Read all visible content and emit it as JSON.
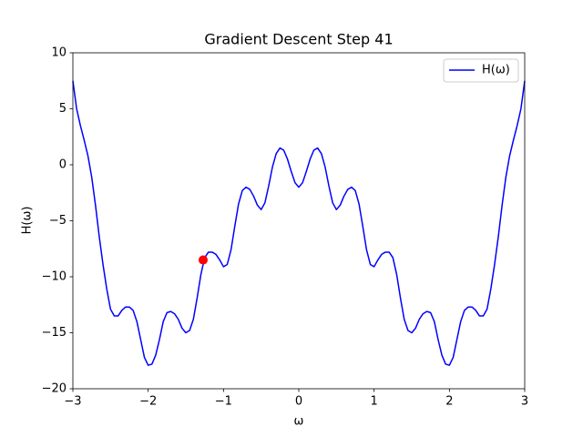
{
  "chart_data": {
    "type": "line",
    "title": "Gradient Descent Step 41",
    "x_label": "ω",
    "y_label": "H(ω)",
    "x": [
      -3,
      -2.95,
      -2.9,
      -2.85,
      -2.8,
      -2.75,
      -2.7,
      -2.65,
      -2.6,
      -2.55,
      -2.5,
      -2.45,
      -2.4,
      -2.35,
      -2.3,
      -2.25,
      -2.2,
      -2.15,
      -2.1,
      -2.05,
      -2,
      -1.95,
      -1.9,
      -1.85,
      -1.8,
      -1.75,
      -1.7,
      -1.65,
      -1.6,
      -1.55,
      -1.5,
      -1.45,
      -1.4,
      -1.35,
      -1.3,
      -1.25,
      -1.2,
      -1.15,
      -1.1,
      -1.05,
      -1,
      -0.95,
      -0.9,
      -0.85,
      -0.8,
      -0.75,
      -0.7,
      -0.65,
      -0.6,
      -0.55,
      -0.5,
      -0.45,
      -0.4,
      -0.35,
      -0.3,
      -0.25,
      -0.2,
      -0.15,
      -0.1,
      -0.05,
      0,
      0.05,
      0.1,
      0.15,
      0.2,
      0.25,
      0.3,
      0.35,
      0.4,
      0.45,
      0.5,
      0.55,
      0.6,
      0.65,
      0.7,
      0.75,
      0.8,
      0.85,
      0.9,
      0.95,
      1,
      1.05,
      1.1,
      1.15,
      1.2,
      1.25,
      1.3,
      1.35,
      1.4,
      1.45,
      1.5,
      1.55,
      1.6,
      1.65,
      1.7,
      1.75,
      1.8,
      1.85,
      1.9,
      1.95,
      2,
      2.05,
      2.1,
      2.15,
      2.2,
      2.25,
      2.3,
      2.35,
      2.4,
      2.45,
      2.5,
      2.55,
      2.6,
      2.65,
      2.7,
      2.75,
      2.8,
      2.85,
      2.9,
      2.95,
      3
    ],
    "series": [
      {
        "name": "H(ω)",
        "color": "#0000ff",
        "values": [
          7.5,
          5.0,
          3.5,
          2.2,
          0.8,
          -1.1,
          -3.6,
          -6.4,
          -8.9,
          -11.1,
          -12.9,
          -13.5,
          -13.5,
          -13.0,
          -12.7,
          -12.7,
          -13.0,
          -14.0,
          -15.6,
          -17.2,
          -17.9,
          -17.8,
          -17.0,
          -15.6,
          -14.0,
          -13.2,
          -13.1,
          -13.3,
          -13.8,
          -14.6,
          -15.0,
          -14.8,
          -13.8,
          -11.9,
          -9.8,
          -8.3,
          -7.8,
          -7.8,
          -8.0,
          -8.5,
          -9.1,
          -8.9,
          -7.6,
          -5.5,
          -3.5,
          -2.3,
          -2.0,
          -2.2,
          -2.8,
          -3.6,
          -4.0,
          -3.4,
          -1.9,
          -0.2,
          1.0,
          1.5,
          1.3,
          0.5,
          -0.6,
          -1.6,
          -2,
          -1.6,
          -0.6,
          0.5,
          1.3,
          1.5,
          1.0,
          -0.2,
          -1.9,
          -3.4,
          -4.0,
          -3.6,
          -2.8,
          -2.2,
          -2.0,
          -2.3,
          -3.5,
          -5.5,
          -7.6,
          -8.9,
          -9.1,
          -8.5,
          -8.0,
          -7.8,
          -7.8,
          -8.3,
          -9.8,
          -11.9,
          -13.8,
          -14.8,
          -15.0,
          -14.6,
          -13.8,
          -13.3,
          -13.1,
          -13.2,
          -14.0,
          -15.6,
          -17.0,
          -17.8,
          -17.9,
          -17.2,
          -15.6,
          -14.0,
          -13.0,
          -12.7,
          -12.7,
          -13.0,
          -13.5,
          -13.5,
          -12.9,
          -11.1,
          -8.9,
          -6.4,
          -3.6,
          -1.1,
          0.8,
          2.2,
          3.5,
          5.0,
          7.5
        ]
      }
    ],
    "marker": {
      "x": -1.27,
      "y": -8.5,
      "color": "#ff0000"
    },
    "xlim": [
      -3,
      3
    ],
    "ylim": [
      -20,
      10
    ],
    "xticks": [
      {
        "value": -3,
        "label": "−3"
      },
      {
        "value": -2,
        "label": "−2"
      },
      {
        "value": -1,
        "label": "−1"
      },
      0,
      1,
      2,
      3
    ],
    "yticks": [
      {
        "value": -20,
        "label": "−20"
      },
      {
        "value": -15,
        "label": "−15"
      },
      {
        "value": -10,
        "label": "−10"
      },
      {
        "value": -5,
        "label": "−5"
      },
      0,
      5,
      10
    ],
    "legend": "upper right",
    "grid": false
  }
}
